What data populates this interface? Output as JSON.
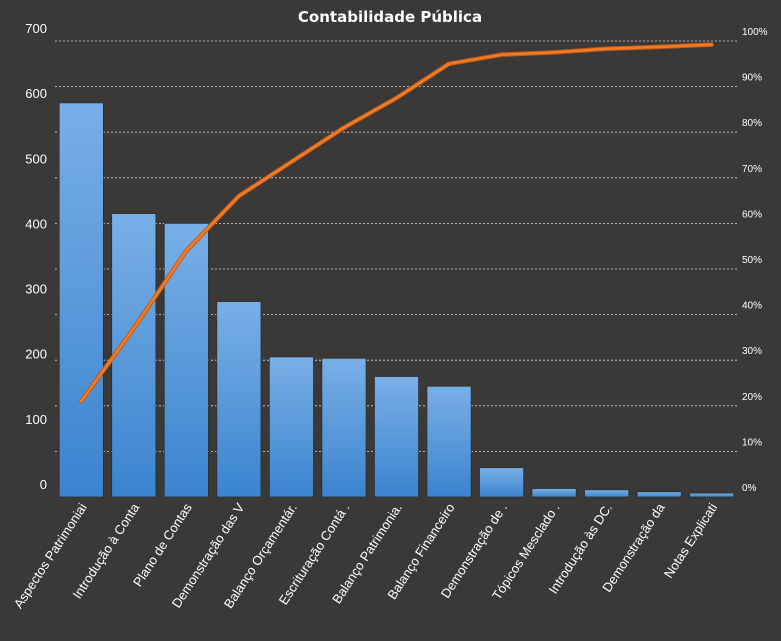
{
  "chart_data": {
    "type": "bar",
    "title": "Contabilidade  Pública",
    "categories": [
      "Aspectos Patrimoniai",
      "Introdução à Conta",
      "Plano de Contas",
      "Demonstração das V",
      "Balanço Orçamentár.",
      "Escrituração Contá .",
      "Balanço Patrimonia.",
      "Balanço Financeiro",
      "Demonstração de .",
      "Tópicos Mesclado .",
      "Introdução às DC.",
      "Demonstração da",
      "Notas Explicati"
    ],
    "series": [
      {
        "type": "bar",
        "values": [
          605,
          435,
          420,
          300,
          215,
          213,
          185,
          170,
          45,
          13,
          11,
          8,
          6
        ]
      },
      {
        "type": "line",
        "axis": "secondary",
        "values": [
          21,
          37,
          54,
          66,
          73.5,
          81,
          87.5,
          95,
          97,
          97.5,
          98.3,
          98.7,
          99.2
        ]
      }
    ],
    "ylim": [
      0,
      700
    ],
    "yticks": [
      "0",
      "100",
      "200",
      "300",
      "400",
      "500",
      "600",
      "700"
    ],
    "y2lim": [
      0,
      100
    ],
    "y2ticks": [
      "0%",
      "10%",
      "20%",
      "30%",
      "40%",
      "50%",
      "60%",
      "70%",
      "80%",
      "90%",
      "100%"
    ],
    "grid": true,
    "legend": "none",
    "colors": {
      "background": "#3b3938",
      "bar_top": "#79afe6",
      "bar_bottom": "#3a84cf",
      "line": "#f07c2a",
      "text": "#ffffff",
      "grid": "#d8d8d8"
    }
  }
}
